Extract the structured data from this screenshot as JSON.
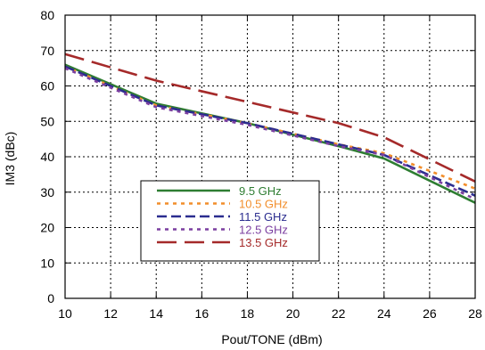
{
  "chart_data": {
    "type": "line",
    "xlabel": "Pout/TONE (dBm)",
    "ylabel": "IM3 (dBc)",
    "xlim": [
      10,
      28
    ],
    "ylim": [
      0,
      80
    ],
    "xticks": [
      10,
      12,
      14,
      16,
      18,
      20,
      22,
      24,
      26,
      28
    ],
    "yticks": [
      0,
      10,
      20,
      30,
      40,
      50,
      60,
      70,
      80
    ],
    "grid": true,
    "legend_position": "lower-left",
    "series": [
      {
        "name": "9.5 GHz",
        "color": "#2e7d32",
        "dash": "solid",
        "x": [
          10,
          14,
          18,
          22,
          24,
          28
        ],
        "y": [
          66,
          55,
          49.5,
          43,
          39.5,
          27
        ]
      },
      {
        "name": "10.5 GHz",
        "color": "#f28e2b",
        "dash": "dot",
        "x": [
          10,
          14,
          18,
          22,
          24,
          28
        ],
        "y": [
          65.5,
          54.5,
          49.5,
          43.5,
          41,
          31
        ]
      },
      {
        "name": "11.5 GHz",
        "color": "#2b2d8f",
        "dash": "dash",
        "x": [
          10,
          14,
          18,
          22,
          24,
          28
        ],
        "y": [
          65.5,
          54.5,
          49.5,
          43.5,
          40.5,
          29
        ]
      },
      {
        "name": "12.5 GHz",
        "color": "#7b3fa0",
        "dash": "dot",
        "x": [
          10,
          14,
          18,
          22,
          24,
          28
        ],
        "y": [
          65,
          54,
          49,
          43,
          40.5,
          28
        ]
      },
      {
        "name": "13.5 GHz",
        "color": "#a52a2a",
        "dash": "longdash",
        "x": [
          10,
          14,
          18,
          22,
          24,
          28
        ],
        "y": [
          69,
          61.5,
          55.5,
          49.5,
          45.5,
          33
        ]
      }
    ]
  }
}
